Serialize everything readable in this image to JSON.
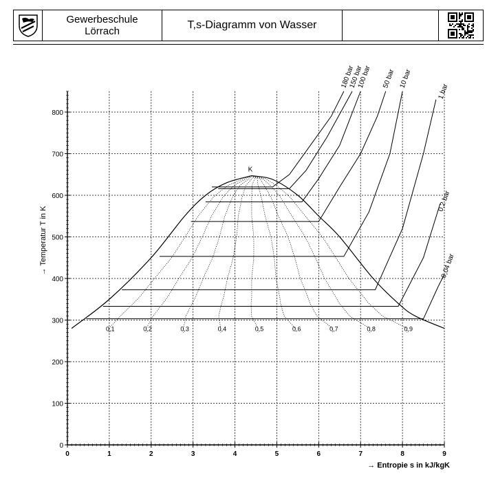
{
  "header": {
    "school_line1": "Gewerbeschule",
    "school_line2": "Lörrach",
    "title": "T,s-Diagramm von Wasser"
  },
  "chart_data": {
    "type": "line",
    "title": "",
    "xlabel": "→ Entropie s in kJ/kgK",
    "ylabel": "→ Temperatur T in K",
    "xlim": [
      0,
      9
    ],
    "ylim": [
      0,
      850
    ],
    "xticks": [
      "0",
      "1",
      "2",
      "3",
      "4",
      "5",
      "6",
      "7",
      "8",
      "9"
    ],
    "yticks": [
      "0",
      "100",
      "200",
      "300",
      "400",
      "500",
      "600",
      "700",
      "800"
    ],
    "grid": true,
    "critical_point": {
      "label": "K",
      "s": 4.4,
      "T": 647
    },
    "saturation_curve": {
      "liquid": [
        [
          0.1,
          280
        ],
        [
          1.0,
          350
        ],
        [
          2.0,
          450
        ],
        [
          2.8,
          550
        ],
        [
          3.3,
          600
        ],
        [
          3.8,
          630
        ],
        [
          4.4,
          647
        ]
      ],
      "vapor": [
        [
          4.4,
          647
        ],
        [
          4.9,
          638
        ],
        [
          5.5,
          600
        ],
        [
          6.0,
          550
        ],
        [
          6.5,
          500
        ],
        [
          7.3,
          400
        ],
        [
          7.9,
          340
        ],
        [
          8.3,
          310
        ],
        [
          9.0,
          280
        ]
      ]
    },
    "quality_lines": {
      "labels": [
        "0,1",
        "0,2",
        "0,3",
        "0,4",
        "0,5",
        "0,6",
        "0,7",
        "0,8",
        "0,9"
      ],
      "label_T": 290,
      "end_T": 270
    },
    "isobars": [
      {
        "label": "180 bar",
        "points": [
          [
            3.45,
            620
          ],
          [
            4.9,
            620
          ],
          [
            5.3,
            650
          ],
          [
            5.8,
            720
          ],
          [
            6.3,
            790
          ],
          [
            6.6,
            850
          ]
        ]
      },
      {
        "label": "150 bar",
        "points": [
          [
            3.6,
            616
          ],
          [
            5.3,
            616
          ],
          [
            5.7,
            660
          ],
          [
            6.2,
            740
          ],
          [
            6.8,
            850
          ]
        ]
      },
      {
        "label": "100 bar",
        "points": [
          [
            3.3,
            584
          ],
          [
            5.6,
            584
          ],
          [
            6.0,
            640
          ],
          [
            6.5,
            720
          ],
          [
            7.0,
            850
          ]
        ]
      },
      {
        "label": "50 bar",
        "points": [
          [
            2.95,
            537
          ],
          [
            6.0,
            537
          ],
          [
            6.5,
            620
          ],
          [
            7.0,
            700
          ],
          [
            7.4,
            790
          ],
          [
            7.6,
            850
          ]
        ]
      },
      {
        "label": "10 bar",
        "points": [
          [
            2.2,
            453
          ],
          [
            6.6,
            453
          ],
          [
            7.2,
            560
          ],
          [
            7.7,
            700
          ],
          [
            8.0,
            850
          ]
        ]
      },
      {
        "label": "1 bar",
        "points": [
          [
            1.3,
            373
          ],
          [
            7.35,
            373
          ],
          [
            8.0,
            520
          ],
          [
            8.5,
            700
          ],
          [
            8.8,
            830
          ]
        ]
      },
      {
        "label": "0,2 bar",
        "points": [
          [
            0.85,
            333
          ],
          [
            7.9,
            333
          ],
          [
            8.5,
            450
          ],
          [
            8.9,
            580
          ]
        ]
      },
      {
        "label": "0,04 bar",
        "points": [
          [
            0.45,
            303
          ],
          [
            8.5,
            303
          ],
          [
            8.85,
            380
          ],
          [
            9.0,
            410
          ]
        ]
      }
    ]
  }
}
